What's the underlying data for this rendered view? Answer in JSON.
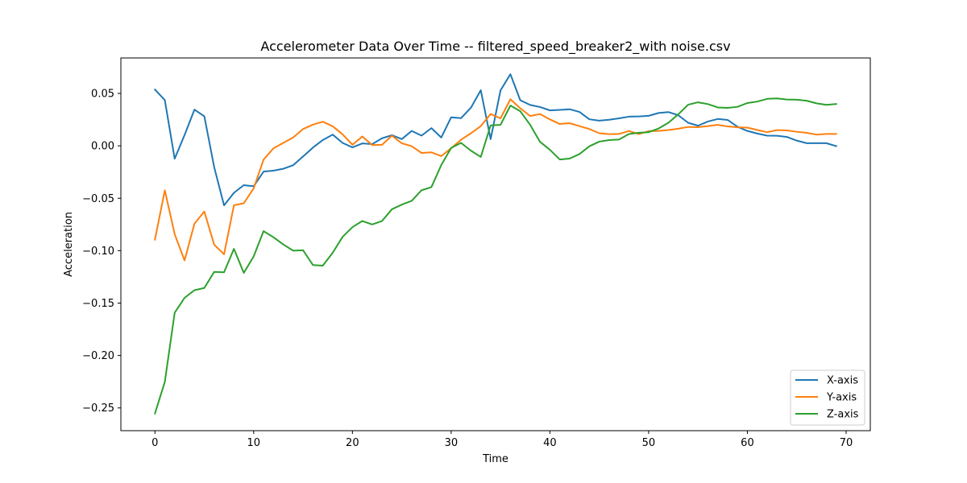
{
  "chart_data": {
    "type": "line",
    "title": "Accelerometer Data Over Time -- filtered_speed_breaker2_with noise.csv",
    "xlabel": "Time",
    "ylabel": "Acceleration",
    "xlim": [
      -3.45,
      72.45
    ],
    "ylim": [
      -0.2717,
      0.0838
    ],
    "x_ticks": [
      0,
      10,
      20,
      30,
      40,
      50,
      60,
      70
    ],
    "x_tick_labels": [
      "0",
      "10",
      "20",
      "30",
      "40",
      "50",
      "60",
      "70"
    ],
    "y_ticks": [
      -0.25,
      -0.2,
      -0.15,
      -0.1,
      -0.05,
      0.0,
      0.05
    ],
    "y_tick_labels": [
      "−0.25",
      "−0.20",
      "−0.15",
      "−0.10",
      "−0.05",
      "0.00",
      "0.05"
    ],
    "grid": false,
    "legend_position": "lower-right",
    "x": [
      0,
      1,
      2,
      3,
      4,
      5,
      6,
      7,
      8,
      9,
      10,
      11,
      12,
      13,
      14,
      15,
      16,
      17,
      18,
      19,
      20,
      21,
      22,
      23,
      24,
      25,
      26,
      27,
      28,
      29,
      30,
      31,
      32,
      33,
      34,
      35,
      36,
      37,
      38,
      39,
      40,
      41,
      42,
      43,
      44,
      45,
      46,
      47,
      48,
      49,
      50,
      51,
      52,
      53,
      54,
      55,
      56,
      57,
      58,
      59,
      60,
      61,
      62,
      63,
      64,
      65,
      66,
      67,
      68,
      69
    ],
    "series": [
      {
        "name": "X-axis",
        "color": "#1f77b4",
        "values": [
          0.0536,
          0.0436,
          -0.0123,
          0.0103,
          0.0345,
          0.0282,
          -0.0203,
          -0.0568,
          -0.0448,
          -0.0375,
          -0.0386,
          -0.0246,
          -0.0237,
          -0.0219,
          -0.0185,
          -0.0102,
          -0.0017,
          0.0055,
          0.0107,
          0.0028,
          -0.0015,
          0.0023,
          0.0016,
          0.0072,
          0.0101,
          0.0064,
          0.0142,
          0.0097,
          0.0169,
          0.0079,
          0.0272,
          0.0264,
          0.0363,
          0.053,
          0.0064,
          0.0529,
          0.0683,
          0.0435,
          0.039,
          0.037,
          0.0338,
          0.0343,
          0.0349,
          0.0323,
          0.0253,
          0.024,
          0.0249,
          0.0262,
          0.0278,
          0.028,
          0.0286,
          0.0313,
          0.0322,
          0.0292,
          0.022,
          0.0192,
          0.0232,
          0.0256,
          0.0247,
          0.0182,
          0.0142,
          0.0117,
          0.0097,
          0.0096,
          0.0085,
          0.005,
          0.0025,
          0.0025,
          0.0025,
          -0.0003
        ]
      },
      {
        "name": "Y-axis",
        "color": "#ff7f0e",
        "values": [
          -0.0895,
          -0.0425,
          -0.0843,
          -0.1093,
          -0.0743,
          -0.0627,
          -0.0943,
          -0.1035,
          -0.0567,
          -0.0548,
          -0.0405,
          -0.0132,
          -0.0024,
          0.0028,
          0.008,
          0.016,
          0.0202,
          0.023,
          0.0187,
          0.011,
          0.001,
          0.0089,
          0.0008,
          0.001,
          0.0097,
          0.0024,
          -0.0003,
          -0.0068,
          -0.0062,
          -0.0098,
          -0.0023,
          0.0058,
          0.012,
          0.0188,
          0.0303,
          0.0262,
          0.0444,
          0.0358,
          0.0284,
          0.0303,
          0.0252,
          0.0208,
          0.0216,
          0.0188,
          0.016,
          0.012,
          0.0111,
          0.0113,
          0.0142,
          0.0112,
          0.014,
          0.0142,
          0.0151,
          0.0163,
          0.018,
          0.0178,
          0.0188,
          0.02,
          0.0185,
          0.0177,
          0.0174,
          0.0151,
          0.013,
          0.015,
          0.0147,
          0.0134,
          0.0124,
          0.0107,
          0.0113,
          0.0113
        ]
      },
      {
        "name": "Z-axis",
        "color": "#2ca02c",
        "values": [
          -0.2553,
          -0.2252,
          -0.1592,
          -0.145,
          -0.1377,
          -0.1356,
          -0.1202,
          -0.1206,
          -0.0983,
          -0.1212,
          -0.1055,
          -0.0814,
          -0.0872,
          -0.0941,
          -0.1,
          -0.0996,
          -0.1137,
          -0.1143,
          -0.102,
          -0.0869,
          -0.0776,
          -0.0717,
          -0.075,
          -0.0717,
          -0.0605,
          -0.0561,
          -0.0525,
          -0.0424,
          -0.0394,
          -0.0183,
          -0.002,
          0.0028,
          -0.0046,
          -0.0106,
          0.0195,
          0.02,
          0.0384,
          0.033,
          0.02,
          0.0038,
          -0.0038,
          -0.013,
          -0.0122,
          -0.0078,
          -0.0004,
          0.004,
          0.0055,
          0.006,
          0.0112,
          0.0125,
          0.013,
          0.0165,
          0.022,
          0.03,
          0.0392,
          0.0415,
          0.0398,
          0.0366,
          0.0362,
          0.0372,
          0.0408,
          0.0422,
          0.0448,
          0.0452,
          0.0442,
          0.044,
          0.043,
          0.0405,
          0.0391,
          0.0399
        ]
      }
    ]
  }
}
